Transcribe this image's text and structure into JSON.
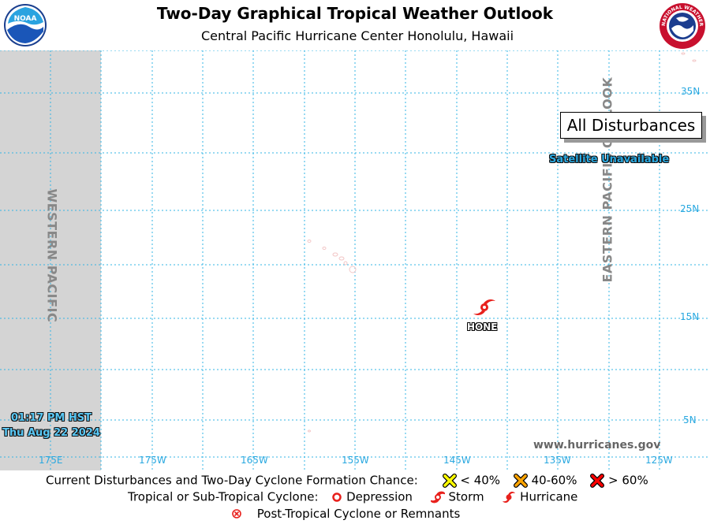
{
  "header": {
    "title": "Two-Day Graphical Tropical Weather Outlook",
    "subtitle": "Central Pacific Hurricane Center  Honolulu, Hawaii",
    "noaa_logo_text": "NOAA",
    "nws_logo_text": "NATIONAL WEATHER SERVICE"
  },
  "map": {
    "box_label": "All Disturbances",
    "satellite_status": "Satellite Unavailable",
    "western_region_label": "WESTERN PACIFIC",
    "eastern_region_label": "EASTERN PACIFIC OUTLOOK",
    "latitude_labels": [
      "35N",
      "25N",
      "15N",
      "5N"
    ],
    "longitude_labels": [
      "175E",
      "175W",
      "165W",
      "155W",
      "145W",
      "135W",
      "125W"
    ],
    "issue_time": "01:17 PM HST",
    "issue_date": "Thu Aug 22 2024",
    "website": "www.hurricanes.gov",
    "storms": [
      {
        "name": "HONE",
        "type": "Storm",
        "symbol_color": "#e8201c"
      }
    ],
    "colors": {
      "grid": "#33b5e5",
      "label": "#29a8e0",
      "shaded_region": "#d4d4d4"
    }
  },
  "legend": {
    "row1_label": "Current Disturbances and Two-Day Cyclone Formation Chance:",
    "chance_low": "< 40%",
    "chance_mid": "40-60%",
    "chance_high": "> 60%",
    "row2_label": "Tropical or Sub-Tropical Cyclone:",
    "depression": "Depression",
    "storm": "Storm",
    "hurricane": "Hurricane",
    "post_tropical": "Post-Tropical Cyclone or Remnants",
    "colors": {
      "low": "#ffff00",
      "mid": "#ffa500",
      "high": "#ff0000",
      "cyclone": "#e8201c"
    }
  }
}
